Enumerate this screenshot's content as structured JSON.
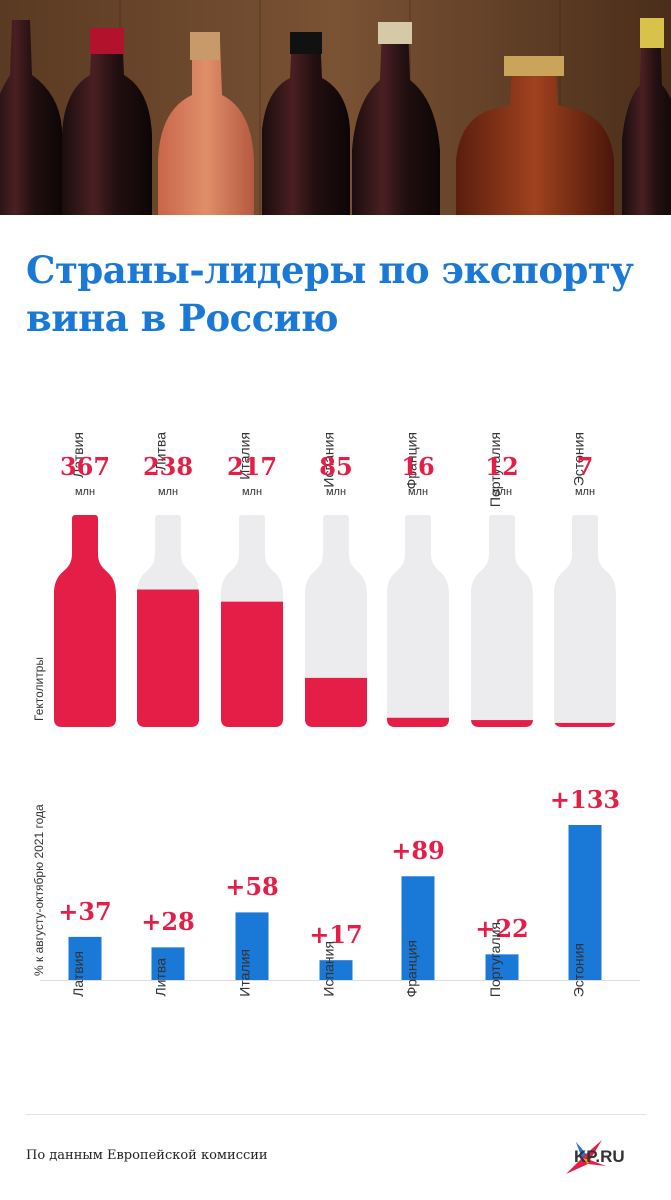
{
  "title_line1": "Страны-лидеры по экспорту",
  "title_line2": "вина в Россию",
  "colors": {
    "title": "#1a78d6",
    "accent_red": "#e51e47",
    "bottle_empty": "#ececee",
    "bar_blue": "#1a78d6"
  },
  "chart_data": [
    {
      "type": "bar",
      "categories": [
        "Латвия",
        "Литва",
        "Италия",
        "Испания",
        "Франция",
        "Португалия",
        "Эстония"
      ],
      "values": [
        367,
        238,
        217,
        85,
        16,
        12,
        7
      ],
      "value_labels": [
        "367",
        "238",
        "217",
        "85",
        "16",
        "12",
        "7"
      ],
      "unit": "млн",
      "ylabel": "Гектолитры",
      "ylim": [
        0,
        367
      ]
    },
    {
      "type": "bar",
      "categories": [
        "Латвия",
        "Литва",
        "Италия",
        "Испания",
        "Франция",
        "Португалия",
        "Эстония"
      ],
      "values": [
        37,
        28,
        58,
        17,
        89,
        22,
        133
      ],
      "value_labels": [
        "+37",
        "+28",
        "+58",
        "+17",
        "+89",
        "+22",
        "+133"
      ],
      "ylabel": "% к августу-октябрю 2021 года",
      "ylim": [
        0,
        133
      ]
    }
  ],
  "footer": {
    "source": "По данным Европейской комиссии",
    "logo": "KP.RU"
  }
}
